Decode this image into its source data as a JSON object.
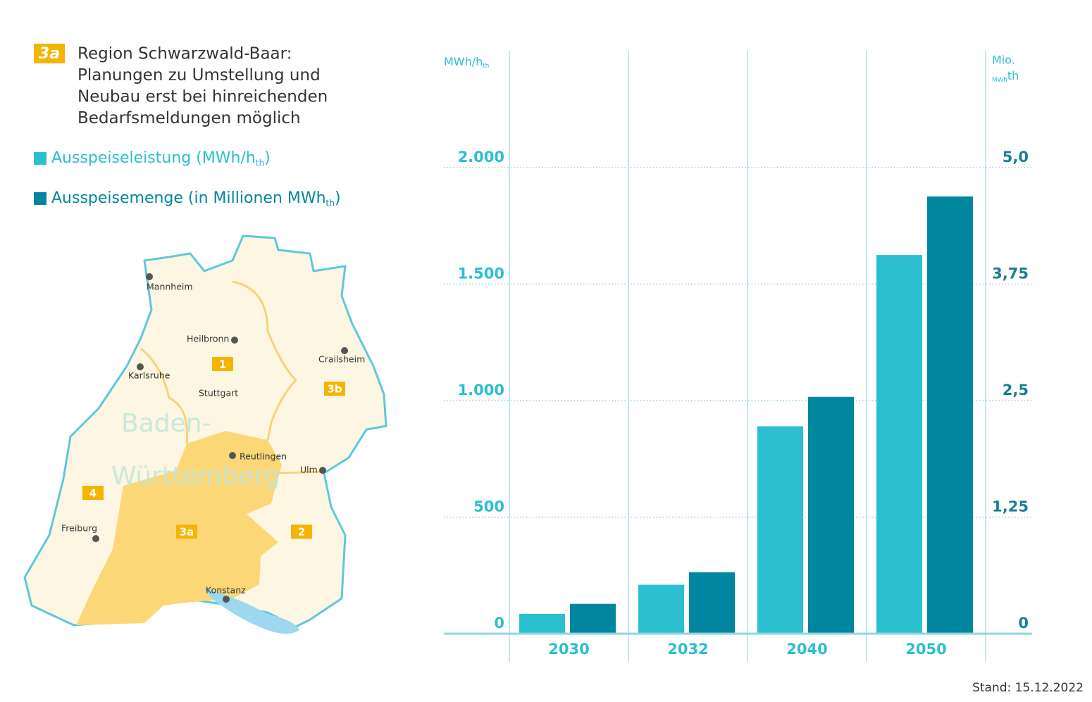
{
  "chart_data": {
    "type": "bar",
    "badge": "3a",
    "title": [
      "Region Schwarzwald-Baar:",
      "Planungen zu Umstellung und",
      "Neubau erst bei hinreichenden",
      "Bedarfsmeldungen möglich"
    ],
    "y_label": [
      "MWh/h",
      "th"
    ],
    "y2_label": [
      "Mio.",
      "MWh",
      "th"
    ],
    "categories": [
      "2030",
      "2032",
      "2040",
      "2050"
    ],
    "series": [
      {
        "name": [
          "Ausspeiseleistung (MWh/h",
          "th",
          ")"
        ],
        "color": "#2bbfd0",
        "values": [
          85,
          210,
          890,
          1625
        ]
      },
      {
        "name": [
          "Ausspeisemenge (in Millionen MWh",
          "th",
          ")"
        ],
        "color": "#00869e",
        "axis": "y2",
        "values": [
          0.32,
          0.66,
          2.54,
          4.69
        ]
      }
    ],
    "ylim": [
      0,
      2000
    ],
    "yticks": [
      0,
      500,
      {
        "value": 1000,
        "label": "1.000"
      },
      {
        "value": 1500,
        "label": "1.500"
      },
      {
        "value": 2000,
        "label": "2.000"
      }
    ],
    "y2lim": [
      0,
      5
    ],
    "y2ticks": [
      0,
      {
        "value": 1.25,
        "label": "1,25"
      },
      {
        "value": 2.5,
        "label": "2,5"
      },
      {
        "value": 3.75,
        "label": "3,75"
      },
      {
        "value": 5,
        "label": "5,0"
      }
    ],
    "grid": true,
    "footnote": "Stand: 15.12.2022"
  },
  "map": {
    "state_name": [
      "Baden-",
      "Württemberg"
    ],
    "cities": [
      "Mannheim",
      "Heilbronn",
      "Crailsheim",
      "Karlsruhe",
      "Stuttgart",
      "Reutlingen",
      "Ulm",
      "Freiburg",
      "Konstanz"
    ],
    "regions": [
      "1",
      "3b",
      "4",
      "3a",
      "2"
    ]
  }
}
